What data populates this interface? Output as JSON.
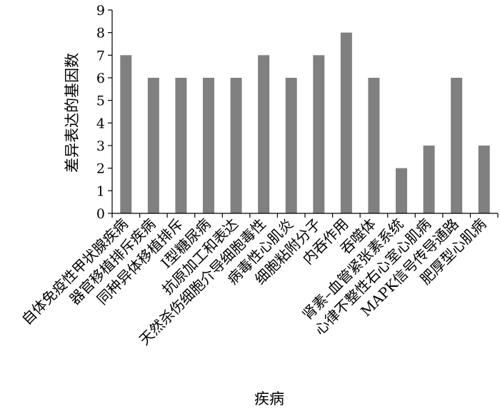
{
  "chart_data": {
    "type": "bar",
    "title": "",
    "xlabel": "疾病",
    "ylabel": "差异表达的基因数",
    "ylim": [
      0,
      9
    ],
    "yticks": [
      0,
      1,
      2,
      3,
      4,
      5,
      6,
      7,
      8,
      9
    ],
    "grid": false,
    "legend": "none",
    "bar_color": "#808080",
    "categories": [
      "自体免疫性甲状腺疾病",
      "器官移植排斥疾病",
      "同种异体移植排斥",
      "I型糖尿病",
      "抗原加工和表达",
      "天然杀伤细胞介导细胞毒性",
      "病毒性心肌炎",
      "细胞粘附分子",
      "内吞作用",
      "吞噬体",
      "肾素–血管紧张素系统",
      "心律不整性右心室心肌病",
      "MAPK信号传导通路",
      "肥厚型心肌病"
    ],
    "values": [
      7,
      6,
      6,
      6,
      6,
      7,
      6,
      7,
      8,
      6,
      2,
      3,
      6,
      3
    ]
  }
}
